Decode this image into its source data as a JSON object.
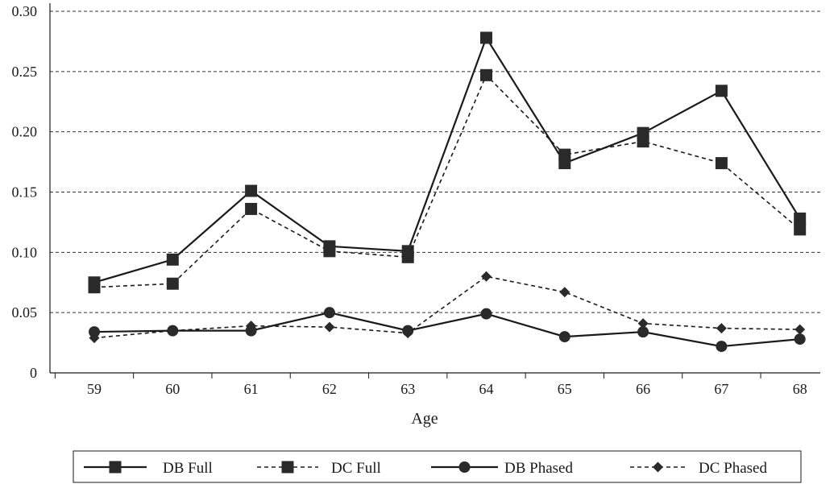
{
  "chart_data": {
    "type": "line",
    "title": "",
    "xlabel": "Age",
    "ylabel": "",
    "categories": [
      "59",
      "60",
      "61",
      "62",
      "63",
      "64",
      "65",
      "66",
      "67",
      "68"
    ],
    "y_ticks": [
      "0",
      "0.05",
      "0.10",
      "0.15",
      "0.20",
      "0.25",
      "0.30"
    ],
    "ylim": [
      0,
      0.3
    ],
    "grid": "horizontal dashed",
    "legend_position": "bottom",
    "series": [
      {
        "name": "DB Full",
        "line_style": "solid",
        "marker": "square",
        "values": [
          0.075,
          0.094,
          0.151,
          0.105,
          0.101,
          0.278,
          0.174,
          0.199,
          0.234,
          0.128
        ]
      },
      {
        "name": "DC Full",
        "line_style": "dashed",
        "marker": "square",
        "values": [
          0.071,
          0.074,
          0.136,
          0.101,
          0.096,
          0.247,
          0.181,
          0.192,
          0.174,
          0.119
        ]
      },
      {
        "name": "DB Phased",
        "line_style": "solid",
        "marker": "circle",
        "values": [
          0.034,
          0.035,
          0.035,
          0.05,
          0.035,
          0.049,
          0.03,
          0.034,
          0.022,
          0.028
        ]
      },
      {
        "name": "DC Phased",
        "line_style": "dashed",
        "marker": "diamond",
        "values": [
          0.029,
          0.035,
          0.039,
          0.038,
          0.033,
          0.08,
          0.067,
          0.041,
          0.037,
          0.036
        ]
      }
    ],
    "colors": {
      "line": "#1a1a1a",
      "marker": "#2a2a2a",
      "grid": "#333333"
    }
  }
}
